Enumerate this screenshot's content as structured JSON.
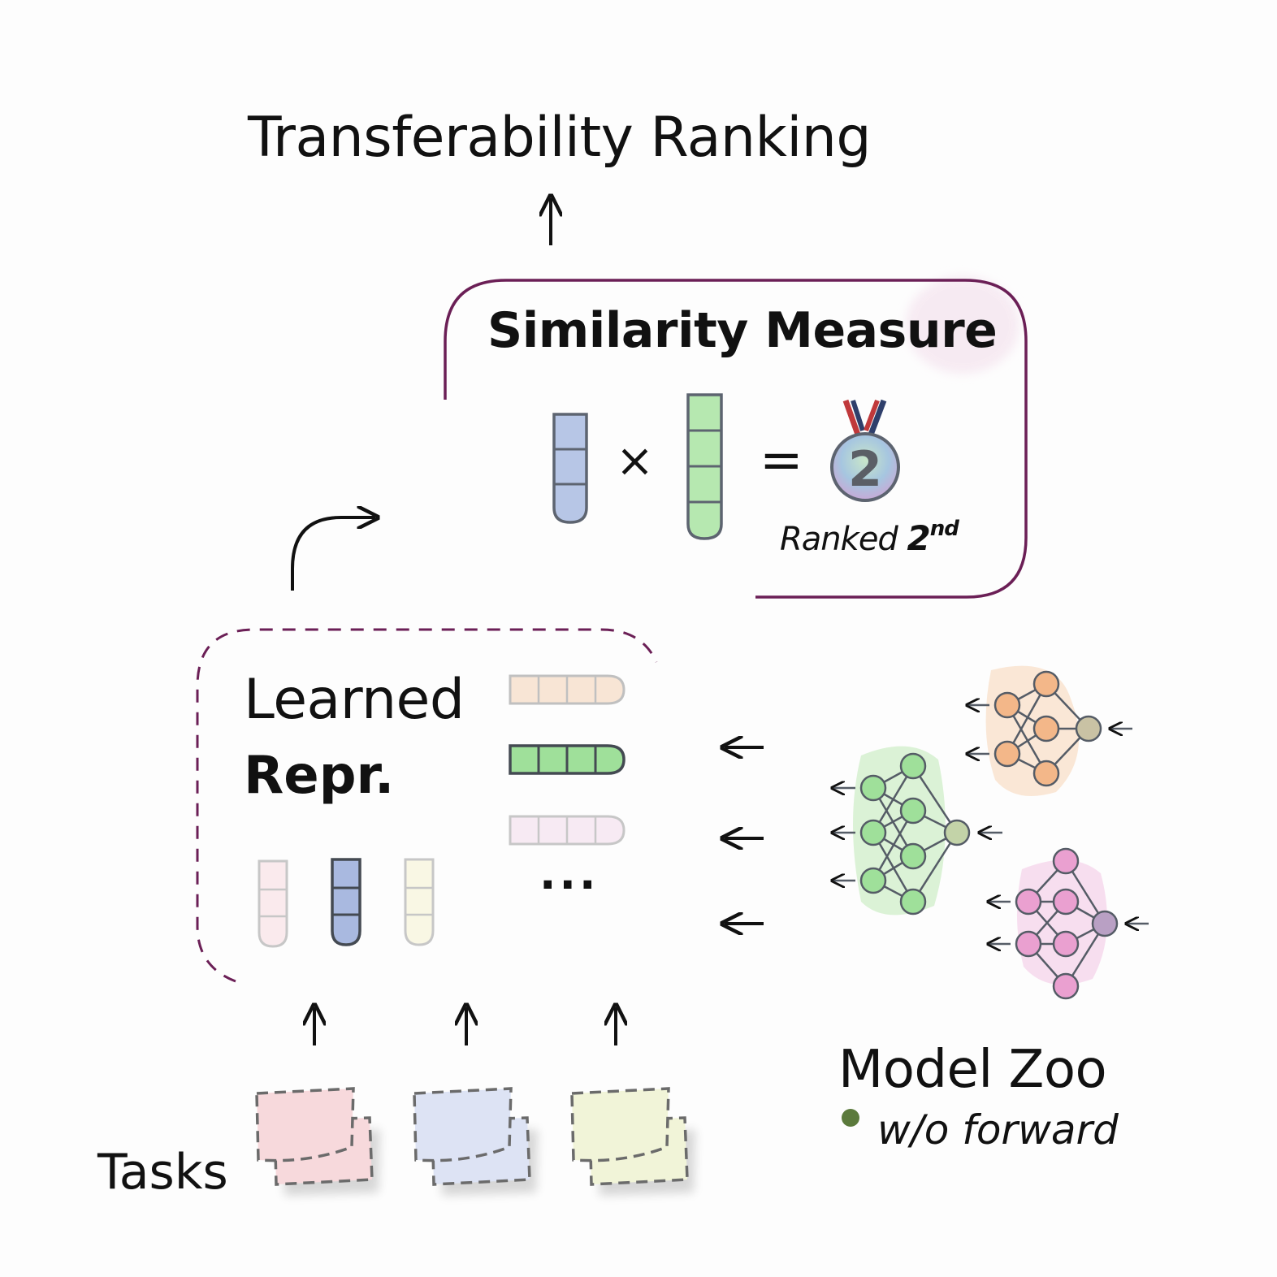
{
  "title": "Transferability Ranking",
  "similarity": {
    "title": "Similarity Measure",
    "times_symbol": "×",
    "equals_symbol": "=",
    "medal_number": "2",
    "ranked_prefix": "Ranked ",
    "ranked_number": "2",
    "ranked_suffix": "nd"
  },
  "learned": {
    "line1": "Learned",
    "line2": "Repr.",
    "ellipsis": "···"
  },
  "tasks_label": "Tasks",
  "model_zoo": {
    "title": "Model Zoo",
    "note": "w/o forward"
  },
  "colors": {
    "frame": "#6b1f56",
    "blue": "#b7c6e6",
    "green": "#b6e8b0",
    "orange": "#f3b789",
    "pink": "#eaa0d0",
    "note_dot": "#5b7a3c"
  }
}
